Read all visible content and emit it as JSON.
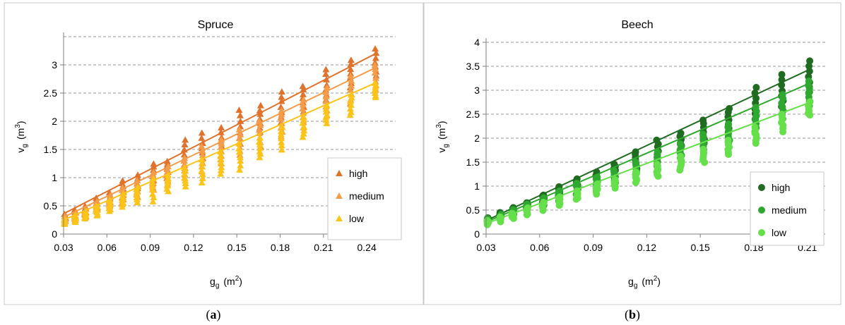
{
  "chart_data": [
    {
      "type": "scatter",
      "panel": "a",
      "title": "Spruce",
      "xlabel": "g",
      "xlabel_sub": "g",
      "xlabel_unit": "(m",
      "xlabel_sup": "2",
      "xlabel_close": ")",
      "ylabel": "v",
      "ylabel_sub": "g",
      "ylabel_unit": "(m",
      "ylabel_sup": "3",
      "ylabel_close": ")",
      "xlim": [
        0.03,
        0.26
      ],
      "ylim": [
        0,
        3.5
      ],
      "x_ticks": [
        0.03,
        0.06,
        0.09,
        0.12,
        0.15,
        0.18,
        0.21,
        0.24
      ],
      "x_tick_labels": [
        "0.03",
        "0.06",
        "0.09",
        "0.12",
        "0.15",
        "0.18",
        "0.21",
        "0.24"
      ],
      "y_ticks": [
        0,
        0.5,
        1,
        1.5,
        2,
        2.5,
        3
      ],
      "y_tick_labels": [
        "0",
        "0.5",
        "1",
        "1.5",
        "2",
        "2.5",
        "3"
      ],
      "grid": "horizontal-dashed",
      "legend_position": "center-right",
      "marker": "triangle",
      "x_levels": [
        0.031,
        0.038,
        0.045,
        0.053,
        0.062,
        0.071,
        0.081,
        0.092,
        0.102,
        0.114,
        0.126,
        0.139,
        0.152,
        0.166,
        0.181,
        0.196,
        0.212,
        0.229,
        0.246
      ],
      "series": [
        {
          "name": "high",
          "color": "#e1722b",
          "fit": {
            "x": [
              0.03,
              0.247
            ],
            "y": [
              0.36,
              3.21
            ]
          },
          "bands": [
            [
              0.24,
              0.35
            ],
            [
              0.28,
              0.42
            ],
            [
              0.34,
              0.5
            ],
            [
              0.44,
              0.64
            ],
            [
              0.52,
              0.74
            ],
            [
              0.64,
              0.95
            ],
            [
              0.76,
              1.05
            ],
            [
              0.9,
              1.25
            ],
            [
              1.0,
              1.3
            ],
            [
              1.13,
              1.68
            ],
            [
              1.26,
              1.8
            ],
            [
              1.4,
              1.88
            ],
            [
              1.6,
              2.2
            ],
            [
              1.8,
              2.28
            ],
            [
              1.98,
              2.53
            ],
            [
              2.18,
              2.63
            ],
            [
              2.38,
              2.92
            ],
            [
              2.6,
              3.09
            ],
            [
              2.8,
              3.29
            ]
          ]
        },
        {
          "name": "medium",
          "color": "#f39c4a",
          "fit": {
            "x": [
              0.03,
              0.247
            ],
            "y": [
              0.3,
              2.96
            ]
          },
          "bands": [
            [
              0.2,
              0.32
            ],
            [
              0.26,
              0.38
            ],
            [
              0.3,
              0.45
            ],
            [
              0.38,
              0.58
            ],
            [
              0.46,
              0.68
            ],
            [
              0.56,
              0.82
            ],
            [
              0.66,
              0.95
            ],
            [
              0.78,
              1.1
            ],
            [
              0.88,
              1.2
            ],
            [
              1.0,
              1.35
            ],
            [
              1.12,
              1.55
            ],
            [
              1.24,
              1.68
            ],
            [
              1.4,
              1.85
            ],
            [
              1.56,
              2.0
            ],
            [
              1.74,
              2.2
            ],
            [
              1.9,
              2.38
            ],
            [
              2.1,
              2.6
            ],
            [
              2.3,
              2.8
            ],
            [
              2.55,
              3.0
            ]
          ]
        },
        {
          "name": "low",
          "color": "#fcc419",
          "fit": {
            "x": [
              0.03,
              0.247
            ],
            "y": [
              0.25,
              2.69
            ]
          },
          "bands": [
            [
              0.18,
              0.28
            ],
            [
              0.22,
              0.33
            ],
            [
              0.28,
              0.4
            ],
            [
              0.32,
              0.5
            ],
            [
              0.4,
              0.6
            ],
            [
              0.48,
              0.72
            ],
            [
              0.56,
              0.84
            ],
            [
              0.58,
              0.98
            ],
            [
              0.76,
              1.05
            ],
            [
              0.84,
              1.18
            ],
            [
              0.92,
              1.32
            ],
            [
              1.06,
              1.46
            ],
            [
              1.14,
              1.6
            ],
            [
              1.36,
              1.7
            ],
            [
              1.5,
              1.9
            ],
            [
              1.72,
              2.08
            ],
            [
              1.96,
              2.28
            ],
            [
              2.1,
              2.48
            ],
            [
              2.42,
              2.68
            ]
          ]
        }
      ]
    },
    {
      "type": "scatter",
      "panel": "b",
      "title": "Beech",
      "xlabel": "g",
      "xlabel_sub": "g",
      "xlabel_unit": "(m",
      "xlabel_sup": "2",
      "xlabel_close": ")",
      "ylabel": "v",
      "ylabel_sub": "g",
      "ylabel_unit": "(m",
      "ylabel_sup": "3",
      "ylabel_close": ")",
      "xlim": [
        0.03,
        0.22
      ],
      "ylim": [
        0,
        4
      ],
      "x_ticks": [
        0.03,
        0.06,
        0.09,
        0.12,
        0.15,
        0.18,
        0.21
      ],
      "x_tick_labels": [
        "0.03",
        "0.06",
        "0.09",
        "0.12",
        "0.15",
        "0.18",
        "0.21"
      ],
      "y_ticks": [
        0,
        0.5,
        1,
        1.5,
        2,
        2.5,
        3,
        3.5,
        4
      ],
      "y_tick_labels": [
        "0",
        "0.5",
        "1",
        "1.5",
        "2",
        "2.5",
        "3",
        "3.5",
        "4"
      ],
      "grid": "horizontal-dashed",
      "legend_position": "center-right",
      "marker": "circle",
      "x_levels": [
        0.031,
        0.038,
        0.045,
        0.053,
        0.062,
        0.071,
        0.081,
        0.092,
        0.102,
        0.114,
        0.126,
        0.139,
        0.152,
        0.166,
        0.181,
        0.196,
        0.211
      ],
      "series": [
        {
          "name": "high",
          "color": "#1f6b1f",
          "fit": {
            "x": [
              0.03,
              0.211
            ],
            "y": [
              0.28,
              3.43
            ]
          },
          "bands": [
            [
              0.26,
              0.34
            ],
            [
              0.34,
              0.44
            ],
            [
              0.42,
              0.55
            ],
            [
              0.52,
              0.66
            ],
            [
              0.64,
              0.82
            ],
            [
              0.76,
              0.98
            ],
            [
              0.9,
              1.16
            ],
            [
              1.04,
              1.3
            ],
            [
              1.2,
              1.46
            ],
            [
              1.36,
              1.72
            ],
            [
              1.52,
              1.96
            ],
            [
              1.7,
              2.1
            ],
            [
              1.9,
              2.38
            ],
            [
              2.12,
              2.62
            ],
            [
              2.4,
              3.05
            ],
            [
              2.66,
              3.33
            ],
            [
              2.95,
              3.62
            ]
          ]
        },
        {
          "name": "medium",
          "color": "#2ea82e",
          "fit": {
            "x": [
              0.03,
              0.211
            ],
            "y": [
              0.25,
              3.14
            ]
          },
          "bands": [
            [
              0.24,
              0.32
            ],
            [
              0.3,
              0.4
            ],
            [
              0.38,
              0.5
            ],
            [
              0.48,
              0.62
            ],
            [
              0.58,
              0.76
            ],
            [
              0.7,
              0.9
            ],
            [
              0.82,
              1.05
            ],
            [
              0.96,
              1.18
            ],
            [
              1.08,
              1.32
            ],
            [
              1.24,
              1.5
            ],
            [
              1.36,
              1.7
            ],
            [
              1.52,
              1.88
            ],
            [
              1.7,
              2.08
            ],
            [
              1.9,
              2.3
            ],
            [
              2.14,
              2.64
            ],
            [
              2.4,
              2.9
            ],
            [
              2.68,
              3.2
            ]
          ]
        },
        {
          "name": "low",
          "color": "#66e04a",
          "fit": {
            "x": [
              0.03,
              0.211
            ],
            "y": [
              0.22,
              2.74
            ]
          },
          "bands": [
            [
              0.2,
              0.28
            ],
            [
              0.26,
              0.36
            ],
            [
              0.32,
              0.44
            ],
            [
              0.4,
              0.54
            ],
            [
              0.5,
              0.66
            ],
            [
              0.6,
              0.78
            ],
            [
              0.72,
              0.9
            ],
            [
              0.84,
              1.04
            ],
            [
              0.96,
              1.14
            ],
            [
              1.08,
              1.3
            ],
            [
              1.2,
              1.46
            ],
            [
              1.34,
              1.62
            ],
            [
              1.5,
              1.78
            ],
            [
              1.66,
              1.96
            ],
            [
              1.9,
              2.22
            ],
            [
              2.14,
              2.5
            ],
            [
              2.48,
              2.76
            ]
          ]
        }
      ]
    }
  ],
  "captions": {
    "a": {
      "open": "(",
      "letter": "a",
      "close": ")"
    },
    "b": {
      "open": "(",
      "letter": "b",
      "close": ")"
    }
  }
}
